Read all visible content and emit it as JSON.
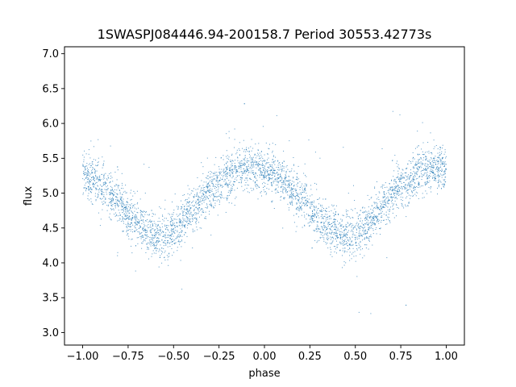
{
  "chart_data": {
    "type": "scatter",
    "title": "1SWASPJ084446.94-200158.7 Period 30553.42773s",
    "xlabel": "phase",
    "ylabel": "flux",
    "xlim": [
      -1.1,
      1.1
    ],
    "ylim": [
      2.82,
      7.1
    ],
    "grid": false,
    "xticks": [
      -1.0,
      -0.75,
      -0.5,
      -0.25,
      0.0,
      0.25,
      0.5,
      0.75,
      1.0
    ],
    "xtick_labels": [
      "−1.00",
      "−0.75",
      "−0.50",
      "−0.25",
      "0.00",
      "0.25",
      "0.50",
      "0.75",
      "1.00"
    ],
    "yticks": [
      3.0,
      3.5,
      4.0,
      4.5,
      5.0,
      5.5,
      6.0,
      6.5,
      7.0
    ],
    "ytick_labels": [
      "3.0",
      "3.5",
      "4.0",
      "4.5",
      "5.0",
      "5.5",
      "6.0",
      "6.5",
      "7.0"
    ],
    "series": [
      {
        "color": "#1f77b4",
        "x": [
          -1.0,
          -0.95,
          -0.9,
          -0.85,
          -0.8,
          -0.75,
          -0.7,
          -0.65,
          -0.6,
          -0.55,
          -0.5,
          -0.45,
          -0.4,
          -0.35,
          -0.3,
          -0.25,
          -0.2,
          -0.15,
          -0.1,
          -0.05,
          0.0,
          0.05,
          0.1,
          0.15,
          0.2,
          0.25,
          0.3,
          0.35,
          0.4,
          0.45,
          0.5,
          0.55,
          0.6,
          0.65,
          0.7,
          0.75,
          0.8,
          0.85,
          0.9,
          0.95,
          1.0
        ],
        "y": [
          5.3,
          5.22,
          5.1,
          4.98,
          4.85,
          4.7,
          4.58,
          4.48,
          4.4,
          4.38,
          4.45,
          4.58,
          4.74,
          4.9,
          5.03,
          5.15,
          5.25,
          5.32,
          5.36,
          5.37,
          5.34,
          5.27,
          5.17,
          5.05,
          4.92,
          4.78,
          4.63,
          4.5,
          4.42,
          4.38,
          4.42,
          4.52,
          4.66,
          4.82,
          4.97,
          5.1,
          5.2,
          5.28,
          5.33,
          5.35,
          5.32
        ]
      }
    ]
  }
}
